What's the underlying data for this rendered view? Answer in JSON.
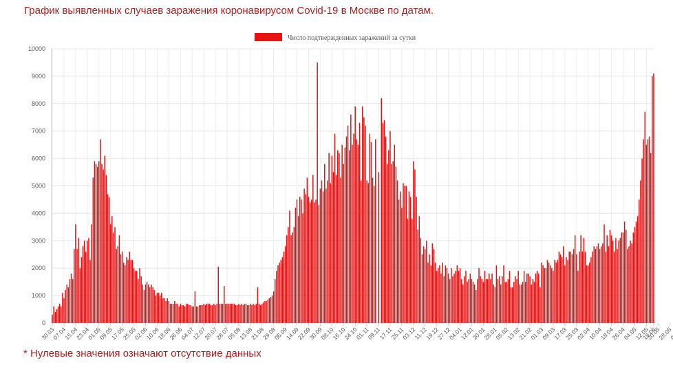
{
  "title": "График выявленных случаев заражения коронавирусом Covid-19 в Москве по датам.",
  "note": "* Нулевые значения означают отсутствие данных",
  "chart_data": {
    "type": "bar",
    "legend": {
      "label": "Число подтвержденных заражений за сутки",
      "position": "top-center"
    },
    "color": "#e81212",
    "grid": true,
    "ylim": [
      0,
      10000
    ],
    "yticks": [
      0,
      1000,
      2000,
      3000,
      4000,
      5000,
      6000,
      7000,
      8000,
      9000,
      10000
    ],
    "xtick_labels": [
      "30.03",
      "07.04",
      "15.04",
      "23.04",
      "01.05",
      "09.05",
      "17.05",
      "25.05",
      "02.06",
      "10.06",
      "18.06",
      "26.06",
      "04.07",
      "12.07",
      "20.07",
      "28.07",
      "05.08",
      "13.08",
      "21.08",
      "29.08",
      "06.09",
      "14.09",
      "22.09",
      "30.09",
      "08.10",
      "16.10",
      "24.10",
      "01.11",
      "09.11",
      "17.11",
      "25.11",
      "03.12",
      "11.12",
      "19.12",
      "27.12",
      "04.01",
      "12.01",
      "20.01",
      "28.01",
      "05.02",
      "13.02",
      "21.02",
      "01.03",
      "09.03",
      "17.03",
      "25.03",
      "02.04",
      "10.04",
      "18.04",
      "26.04",
      "04.05",
      "12.05",
      "20.05",
      "28.05",
      "05.06",
      "13.06",
      "19.06"
    ],
    "start_date": "30.03",
    "values": [
      300,
      600,
      400,
      500,
      600,
      700,
      600,
      1100,
      900,
      1200,
      1400,
      1300,
      1600,
      1800,
      1600,
      2700,
      3600,
      2700,
      3100,
      2000,
      2400,
      2800,
      3000,
      2600,
      3000,
      3100,
      2300,
      3600,
      5300,
      5900,
      5800,
      5700,
      5900,
      6700,
      5800,
      5600,
      6100,
      5400,
      4700,
      4600,
      3600,
      3900,
      3300,
      3500,
      2700,
      2800,
      3200,
      2500,
      2600,
      2200,
      2100,
      2400,
      2300,
      2600,
      2300,
      2300,
      2000,
      1900,
      1900,
      1600,
      2000,
      1700,
      1400,
      1200,
      1400,
      1500,
      1400,
      1300,
      1400,
      1300,
      1200,
      1000,
      1100,
      1100,
      1000,
      1100,
      900,
      900,
      800,
      900,
      800,
      700,
      700,
      700,
      800,
      700,
      700,
      600,
      700,
      650,
      650,
      600,
      700,
      700,
      650,
      650,
      600,
      600,
      1150,
      600,
      600,
      650,
      650,
      650,
      700,
      650,
      700,
      700,
      700,
      650,
      650,
      700,
      650,
      700,
      2050,
      700,
      700,
      700,
      1350,
      700,
      700,
      700,
      700,
      700,
      700,
      700,
      650,
      650,
      700,
      650,
      700,
      650,
      700,
      700,
      650,
      650,
      700,
      650,
      700,
      650,
      700,
      1300,
      700,
      650,
      700,
      750,
      800,
      800,
      850,
      900,
      950,
      1000,
      1150,
      1600,
      1900,
      2100,
      2200,
      2300,
      2400,
      2600,
      2800,
      3200,
      3500,
      4100,
      3200,
      3300,
      3500,
      4200,
      4500,
      3900,
      4600,
      4500,
      4000,
      4900,
      4700,
      5300,
      4600,
      4400,
      4500,
      5400,
      4400,
      4500,
      9500,
      4300,
      4900,
      5200,
      4800,
      5800,
      4900,
      5200,
      6200,
      5100,
      6100,
      5500,
      6900,
      5400,
      6300,
      6200,
      5300,
      6500,
      5800,
      6400,
      6800,
      7200,
      6300,
      7600,
      6500,
      6900,
      7900,
      6700,
      6500,
      7300,
      5200,
      7900,
      7500,
      7200,
      5200,
      5100,
      6900,
      6600,
      5300,
      5000,
      6700,
      0,
      5500,
      0,
      8200,
      7300,
      7400,
      6800,
      5800,
      6300,
      7000,
      5800,
      5900,
      6500,
      5700,
      5200,
      4500,
      4800,
      4200,
      5100,
      5000,
      5000,
      3800,
      4800,
      4600,
      3800,
      5900,
      5600,
      4600,
      3400,
      3900,
      3100,
      2500,
      2800,
      2700,
      3000,
      2200,
      2500,
      2100,
      2900,
      2700,
      2200,
      1900,
      2000,
      2100,
      1800,
      2200,
      1700,
      2100,
      2000,
      1800,
      1600,
      2000,
      1700,
      1800,
      1900,
      2100,
      1900,
      2000,
      1600,
      1400,
      1700,
      1900,
      1500,
      1600,
      1800,
      1600,
      1500,
      1400,
      1200,
      1600,
      2000,
      1700,
      1600,
      1500,
      1900,
      1600,
      1600,
      1800,
      1600,
      1800,
      1400,
      1300,
      2100,
      1600,
      1700,
      1400,
      1700,
      2100,
      1500,
      1500,
      1600,
      1900,
      1300,
      1300,
      1500,
      1700,
      1600,
      1900,
      1400,
      1400,
      1500,
      1900,
      1500,
      1800,
      1800,
      1700,
      1400,
      1600,
      1500,
      1800,
      1900,
      1800,
      1300,
      2200,
      2100,
      2000,
      2000,
      2300,
      2200,
      2100,
      2000,
      1900,
      2300,
      2200,
      2300,
      2600,
      2500,
      2400,
      2800,
      2100,
      2400,
      2300,
      2600,
      2600,
      2500,
      2700,
      3200,
      2500,
      1900,
      2600,
      3200,
      2600,
      3100,
      2600,
      2100,
      2100,
      2200,
      2400,
      2600,
      2800,
      2700,
      2800,
      2900,
      2700,
      2800,
      2900,
      3600,
      2600,
      3200,
      2800,
      3400,
      3200,
      3000,
      2600,
      3100,
      2700,
      3000,
      3100,
      3300,
      3300,
      3700,
      3400,
      2700,
      2800,
      3000,
      2900,
      3300,
      3500,
      3700,
      3900,
      4500,
      5200,
      6000,
      6700,
      7700,
      6500,
      6700,
      6800,
      6200,
      9000,
      9100
    ]
  }
}
